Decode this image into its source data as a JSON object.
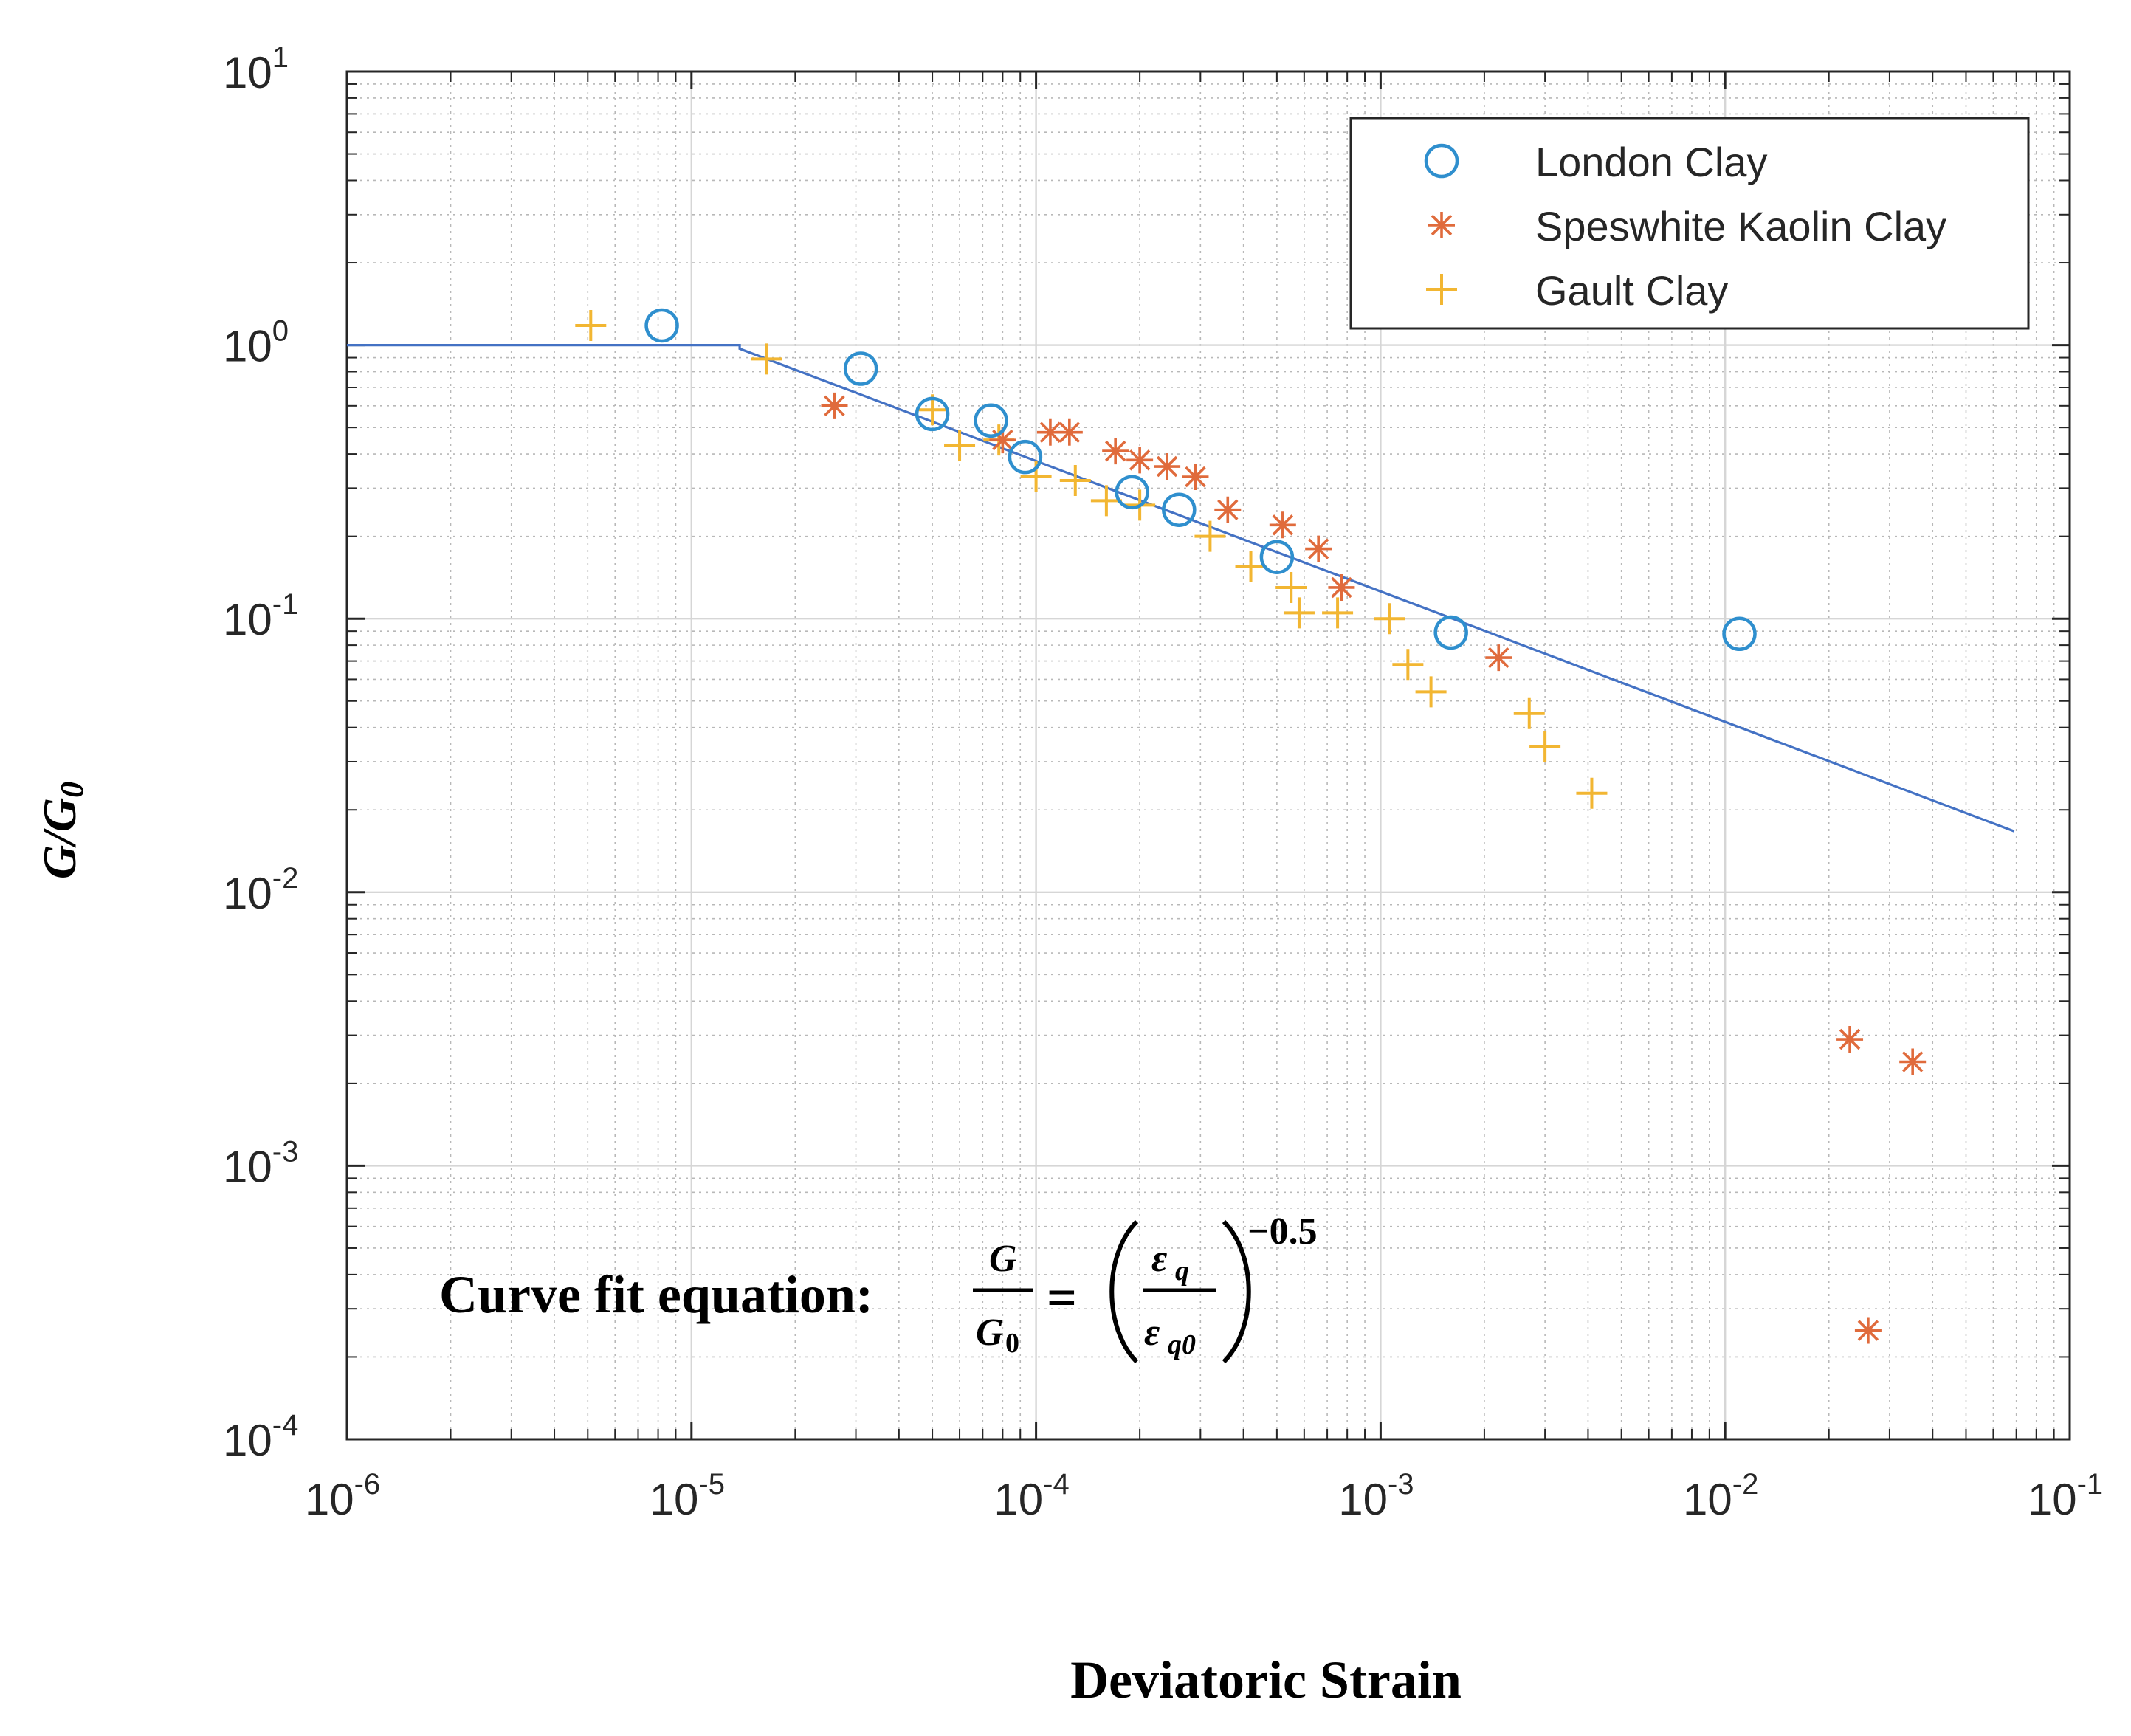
{
  "chart_data": {
    "type": "scatter",
    "xscale": "log",
    "yscale": "log",
    "xlim": [
      1e-06,
      0.1
    ],
    "ylim": [
      0.0001,
      10
    ],
    "xlabel": "Deviatoric Strain",
    "ylabel": "G/G",
    "ylabel_subscript": "0",
    "grid": true,
    "legend_position": "top-right",
    "x_ticks": [
      {
        "value": 1e-06,
        "base": "10",
        "exp": "-6"
      },
      {
        "value": 1e-05,
        "base": "10",
        "exp": "-5"
      },
      {
        "value": 0.0001,
        "base": "10",
        "exp": "-4"
      },
      {
        "value": 0.001,
        "base": "10",
        "exp": "-3"
      },
      {
        "value": 0.01,
        "base": "10",
        "exp": "-2"
      },
      {
        "value": 0.1,
        "base": "10",
        "exp": "-1"
      }
    ],
    "y_ticks": [
      {
        "value": 0.0001,
        "base": "10",
        "exp": "-4"
      },
      {
        "value": 0.001,
        "base": "10",
        "exp": "-3"
      },
      {
        "value": 0.01,
        "base": "10",
        "exp": "-2"
      },
      {
        "value": 0.1,
        "base": "10",
        "exp": "-1"
      },
      {
        "value": 1,
        "base": "10",
        "exp": "0"
      },
      {
        "value": 10,
        "base": "10",
        "exp": "1"
      }
    ],
    "series": [
      {
        "name": "London Clay",
        "marker": "circle",
        "color": "#2f8fce",
        "points": [
          [
            8.2e-06,
            1.18
          ],
          [
            3.1e-05,
            0.82
          ],
          [
            5e-05,
            0.56
          ],
          [
            7.4e-05,
            0.53
          ],
          [
            9.3e-05,
            0.39
          ],
          [
            0.00019,
            0.29
          ],
          [
            0.00026,
            0.25
          ],
          [
            0.0005,
            0.168
          ],
          [
            0.0016,
            0.089
          ],
          [
            0.011,
            0.088
          ]
        ]
      },
      {
        "name": "Speswhite Kaolin Clay",
        "marker": "asterisk",
        "color": "#e06b3c",
        "points": [
          [
            2.6e-05,
            0.6
          ],
          [
            8e-05,
            0.45
          ],
          [
            0.00011,
            0.48
          ],
          [
            0.000125,
            0.48
          ],
          [
            0.00017,
            0.41
          ],
          [
            0.0002,
            0.38
          ],
          [
            0.00024,
            0.36
          ],
          [
            0.00029,
            0.33
          ],
          [
            0.00036,
            0.25
          ],
          [
            0.00052,
            0.22
          ],
          [
            0.00066,
            0.18
          ],
          [
            0.00077,
            0.13
          ],
          [
            0.0022,
            0.072
          ],
          [
            0.023,
            0.0029
          ],
          [
            0.035,
            0.0024
          ],
          [
            0.026,
            0.00025
          ]
        ]
      },
      {
        "name": "Gault Clay",
        "marker": "plus",
        "color": "#f2b632",
        "points": [
          [
            5.1e-06,
            1.18
          ],
          [
            1.65e-05,
            0.89
          ],
          [
            5e-05,
            0.58
          ],
          [
            6e-05,
            0.43
          ],
          [
            7.8e-05,
            0.45
          ],
          [
            0.0001,
            0.33
          ],
          [
            0.00013,
            0.32
          ],
          [
            0.00016,
            0.27
          ],
          [
            0.0002,
            0.26
          ],
          [
            0.00032,
            0.2
          ],
          [
            0.00042,
            0.155
          ],
          [
            0.00055,
            0.13
          ],
          [
            0.00058,
            0.105
          ],
          [
            0.00075,
            0.105
          ],
          [
            0.00106,
            0.1
          ],
          [
            0.0012,
            0.068
          ],
          [
            0.0014,
            0.054
          ],
          [
            0.0027,
            0.045
          ],
          [
            0.003,
            0.034
          ],
          [
            0.0041,
            0.023
          ]
        ]
      }
    ],
    "fit_line": {
      "color": "#4472c4",
      "points": [
        [
          1e-06,
          1
        ],
        [
          1.38e-05,
          1
        ],
        [
          1.38e-05,
          0.97
        ],
        [
          0.069,
          0.0167
        ]
      ]
    },
    "annotation": {
      "prefix": "Curve fit equation:",
      "lhs_num": "G",
      "lhs_den": "G",
      "lhs_den_sub": "0",
      "equals": "=",
      "rhs_num": "ε",
      "rhs_num_sub": "q",
      "rhs_den": "ε",
      "rhs_den_sub": "q0",
      "exponent": "−0.5"
    }
  }
}
